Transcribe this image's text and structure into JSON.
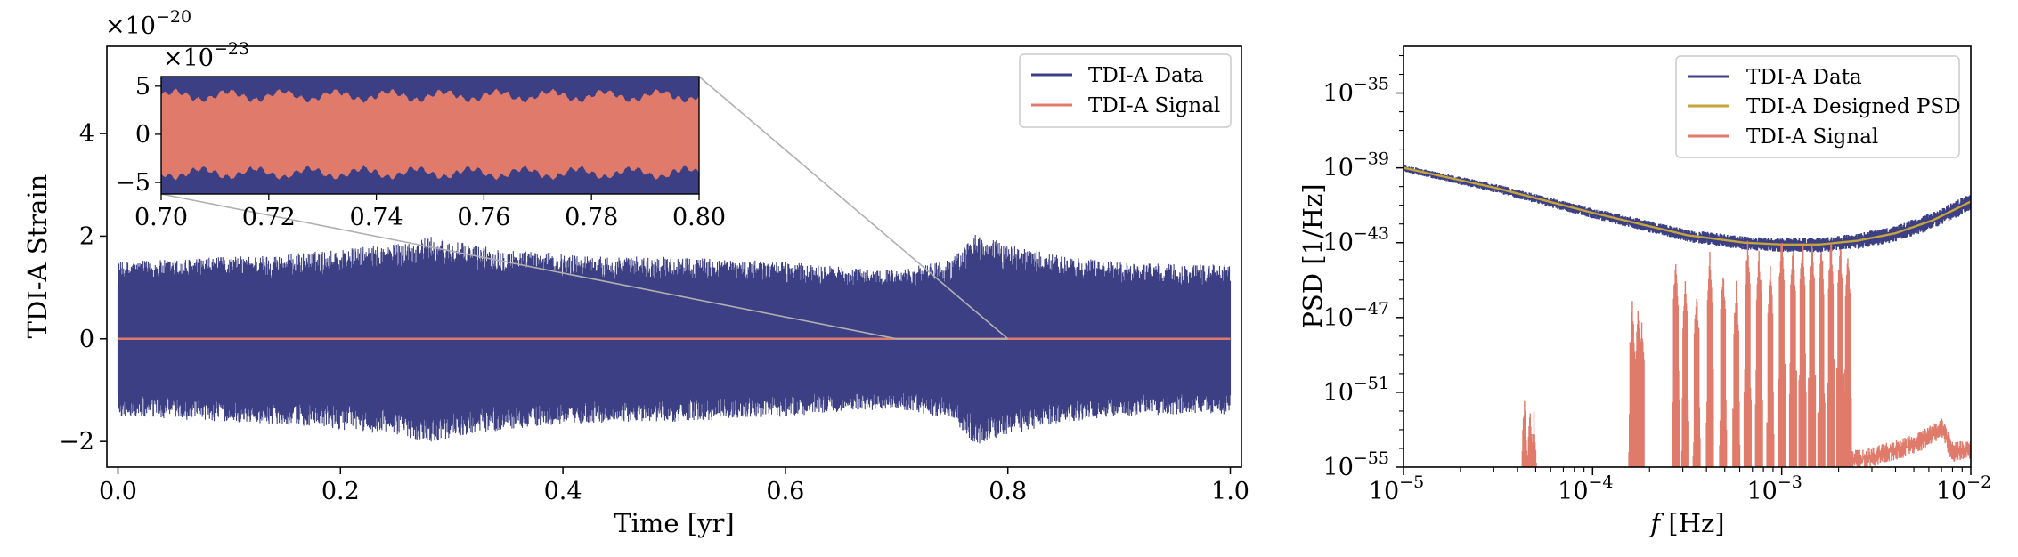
{
  "colors": {
    "data": "#3d3f85",
    "signal": "#e07a6a",
    "psd": "#c4a43c",
    "zoom_line": "#b0b0b0",
    "frame": "#000000"
  },
  "chart_data": [
    {
      "type": "line",
      "name": "time-series",
      "xlabel": "Time [yr]",
      "ylabel": "TDI-A Strain",
      "y_scale_label": "×10",
      "y_scale_exp": "−20",
      "xlim": [
        -0.01,
        1.01
      ],
      "ylim": [
        -2.5,
        5.7
      ],
      "xticks": [
        0.0,
        0.2,
        0.4,
        0.6,
        0.8,
        1.0
      ],
      "xtick_labels": [
        "0.0",
        "0.2",
        "0.4",
        "0.6",
        "0.8",
        "1.0"
      ],
      "yticks": [
        -2,
        0,
        2,
        4
      ],
      "ytick_labels": [
        "−2",
        "0",
        "2",
        "4"
      ],
      "series": [
        {
          "name": "TDI-A Data",
          "envelope_t": [
            0.0,
            0.05,
            0.1,
            0.15,
            0.2,
            0.25,
            0.28,
            0.3,
            0.35,
            0.4,
            0.45,
            0.5,
            0.55,
            0.6,
            0.65,
            0.7,
            0.75,
            0.77,
            0.8,
            0.85,
            0.9,
            0.95,
            1.0
          ],
          "envelope_amp": [
            1.5,
            1.55,
            1.6,
            1.65,
            1.75,
            1.85,
            2.0,
            1.9,
            1.75,
            1.65,
            1.6,
            1.6,
            1.55,
            1.5,
            1.4,
            1.35,
            1.55,
            2.05,
            1.85,
            1.6,
            1.5,
            1.45,
            1.45
          ]
        },
        {
          "name": "TDI-A Signal",
          "value": 0
        }
      ],
      "legend": [
        "TDI-A Data",
        "TDI-A Signal"
      ],
      "legend_loc": "upper right",
      "inset": {
        "xlim": [
          0.7,
          0.8
        ],
        "ylim": [
          -6.2,
          6.0
        ],
        "y_scale_label": "×10",
        "y_scale_exp": "−23",
        "xticks": [
          0.7,
          0.72,
          0.74,
          0.76,
          0.78,
          0.8
        ],
        "xtick_labels": [
          "0.70",
          "0.72",
          "0.74",
          "0.76",
          "0.78",
          "0.80"
        ],
        "yticks": [
          -5,
          0,
          5
        ],
        "ytick_labels": [
          "−5",
          "0",
          "5"
        ],
        "data_band": [
          -6.2,
          6.0
        ],
        "signal_mean_amp": 4.0,
        "signal_mod_amp": 0.45,
        "signal_mod_cycles": 10
      }
    },
    {
      "type": "line",
      "name": "psd",
      "xscale": "log",
      "yscale": "log",
      "xlabel_var": "f",
      "xlabel_unit": "[Hz]",
      "ylabel": "PSD  [1/Hz]",
      "xlim_log10": [
        -5,
        -2
      ],
      "ylim_log10": [
        -55,
        -32.5
      ],
      "xtick_bases": [
        "10",
        "10",
        "10",
        "10"
      ],
      "xtick_exps": [
        "−5",
        "−4",
        "−3",
        "−2"
      ],
      "xtick_log10": [
        -5,
        -4,
        -3,
        -2
      ],
      "ytick_bases": [
        "10",
        "10",
        "10",
        "10",
        "10",
        "10"
      ],
      "ytick_exps": [
        "−35",
        "−39",
        "−43",
        "−47",
        "−51",
        "−55"
      ],
      "ytick_log10": [
        -35,
        -39,
        -43,
        -47,
        -51,
        -55
      ],
      "series": [
        {
          "name": "TDI-A Designed PSD",
          "log10_f": [
            -5.0,
            -4.5,
            -4.0,
            -3.5,
            -3.2,
            -3.0,
            -2.8,
            -2.6,
            -2.4,
            -2.2,
            -2.0
          ],
          "log10_psd": [
            -39.0,
            -40.1,
            -41.4,
            -42.6,
            -43.0,
            -43.1,
            -43.1,
            -42.9,
            -42.5,
            -41.8,
            -40.8
          ]
        },
        {
          "name": "TDI-A Data",
          "scatter_dex": 0.45
        },
        {
          "name": "TDI-A Signal",
          "peaks_log10_f": [
            -4.36,
            -4.33,
            -4.31,
            -3.79,
            -3.76,
            -3.74,
            -3.56,
            -3.51,
            -3.45,
            -3.38,
            -3.31,
            -3.24,
            -3.18,
            -3.12,
            -3.06,
            -3.0,
            -2.94,
            -2.89,
            -2.84,
            -2.79,
            -2.74,
            -2.69,
            -2.65
          ],
          "peaks_log10_psd": [
            -51.2,
            -51.5,
            -52.0,
            -46.0,
            -46.4,
            -47.0,
            -43.5,
            -44.6,
            -45.3,
            -43.2,
            -44.2,
            -45.0,
            -42.8,
            -43.3,
            -44.0,
            -42.4,
            -43.0,
            -42.6,
            -42.6,
            -42.8,
            -42.5,
            -42.8,
            -43.3
          ],
          "tail_log10_f": [
            -2.65,
            -2.5,
            -2.3,
            -2.2,
            -2.15,
            -2.1,
            -2.0
          ],
          "tail_log10_psd": [
            -54.7,
            -54.4,
            -53.8,
            -53.2,
            -52.9,
            -54.2,
            -54.0
          ]
        }
      ],
      "legend": [
        "TDI-A Data",
        "TDI-A Designed PSD",
        "TDI-A Signal"
      ],
      "legend_loc": "upper right"
    }
  ]
}
